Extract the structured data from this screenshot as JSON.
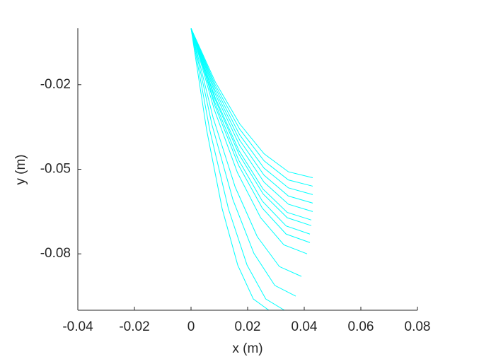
{
  "chart_data": {
    "type": "line",
    "xlabel": "x (m)",
    "ylabel": "y (m)",
    "xlim": [
      -0.04,
      0.08
    ],
    "xticks": [
      -0.04,
      -0.02,
      0,
      0.02,
      0.04,
      0.06,
      0.08
    ],
    "ylim": [
      -0.1,
      0
    ],
    "yticks": [
      -0.08,
      -0.05,
      -0.02
    ],
    "grid": false,
    "color": "#00ffff",
    "series": [
      {
        "x": [
          0,
          0.0055,
          0.011,
          0.0165,
          0.022,
          0.0275
        ],
        "y": [
          0,
          -0.036,
          -0.064,
          -0.084,
          -0.096,
          -0.1
        ]
      },
      {
        "x": [
          0,
          0.0066,
          0.0132,
          0.0198,
          0.0264,
          0.033
        ],
        "y": [
          0,
          -0.036,
          -0.064,
          -0.084,
          -0.096,
          -0.1
        ]
      },
      {
        "x": [
          0,
          0.0074,
          0.0148,
          0.0222,
          0.0296,
          0.037
        ],
        "y": [
          0,
          -0.0342,
          -0.0608,
          -0.0798,
          -0.0912,
          -0.095
        ]
      },
      {
        "x": [
          0,
          0.0078,
          0.0156,
          0.0234,
          0.0312,
          0.039
        ],
        "y": [
          0,
          -0.0317,
          -0.0563,
          -0.0739,
          -0.0845,
          -0.088
        ]
      },
      {
        "x": [
          0,
          0.0082,
          0.0164,
          0.0246,
          0.0328,
          0.041
        ],
        "y": [
          0,
          -0.0288,
          -0.0512,
          -0.0672,
          -0.0768,
          -0.08
        ]
      },
      {
        "x": [
          0,
          0.0084,
          0.0168,
          0.0252,
          0.0336,
          0.042
        ],
        "y": [
          0,
          -0.0274,
          -0.0486,
          -0.0638,
          -0.073,
          -0.076
        ]
      },
      {
        "x": [
          0,
          0.0084,
          0.0168,
          0.0252,
          0.0336,
          0.042
        ],
        "y": [
          0,
          -0.0263,
          -0.0467,
          -0.0613,
          -0.0701,
          -0.073
        ]
      },
      {
        "x": [
          0,
          0.0085,
          0.017,
          0.0255,
          0.034,
          0.0425
        ],
        "y": [
          0,
          -0.0252,
          -0.0448,
          -0.0588,
          -0.0672,
          -0.07
        ]
      },
      {
        "x": [
          0,
          0.0085,
          0.017,
          0.0255,
          0.034,
          0.0425
        ],
        "y": [
          0,
          -0.0245,
          -0.0435,
          -0.0571,
          -0.0653,
          -0.068
        ]
      },
      {
        "x": [
          0,
          0.0086,
          0.0172,
          0.0258,
          0.0344,
          0.043
        ],
        "y": [
          0,
          -0.0234,
          -0.0416,
          -0.0546,
          -0.0624,
          -0.065
        ]
      },
      {
        "x": [
          0,
          0.0086,
          0.0172,
          0.0258,
          0.0344,
          0.043
        ],
        "y": [
          0,
          -0.0223,
          -0.0397,
          -0.0521,
          -0.0595,
          -0.062
        ]
      },
      {
        "x": [
          0,
          0.0086,
          0.0172,
          0.0258,
          0.0344,
          0.043
        ],
        "y": [
          0,
          -0.0212,
          -0.0378,
          -0.0496,
          -0.0566,
          -0.059
        ]
      },
      {
        "x": [
          0,
          0.0086,
          0.0172,
          0.0258,
          0.0344,
          0.043
        ],
        "y": [
          0,
          -0.0202,
          -0.0358,
          -0.047,
          -0.0538,
          -0.056
        ]
      },
      {
        "x": [
          0,
          0.0086,
          0.0172,
          0.0258,
          0.0344,
          0.043
        ],
        "y": [
          0,
          -0.0191,
          -0.0339,
          -0.0445,
          -0.0509,
          -0.053
        ]
      }
    ]
  }
}
